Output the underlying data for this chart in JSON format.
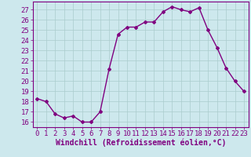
{
  "x": [
    0,
    1,
    2,
    3,
    4,
    5,
    6,
    7,
    8,
    9,
    10,
    11,
    12,
    13,
    14,
    15,
    16,
    17,
    18,
    19,
    20,
    21,
    22,
    23
  ],
  "y": [
    18.3,
    18.0,
    16.8,
    16.4,
    16.6,
    16.0,
    16.0,
    17.0,
    21.2,
    24.6,
    25.3,
    25.3,
    25.8,
    25.8,
    26.8,
    27.3,
    27.0,
    26.8,
    27.2,
    25.0,
    23.3,
    21.3,
    20.0,
    19.0
  ],
  "line_color": "#800080",
  "marker": "D",
  "marker_size": 2,
  "bg_color": "#cde8ed",
  "grid_color": "#aacccc",
  "xlabel": "Windchill (Refroidissement éolien,°C)",
  "ylabel": "",
  "ylim": [
    15.5,
    27.8
  ],
  "xlim": [
    -0.5,
    23.5
  ],
  "yticks": [
    16,
    17,
    18,
    19,
    20,
    21,
    22,
    23,
    24,
    25,
    26,
    27
  ],
  "xticks": [
    0,
    1,
    2,
    3,
    4,
    5,
    6,
    7,
    8,
    9,
    10,
    11,
    12,
    13,
    14,
    15,
    16,
    17,
    18,
    19,
    20,
    21,
    22,
    23
  ],
  "tick_fontsize": 6.5,
  "xlabel_fontsize": 7,
  "line_width": 1.0
}
